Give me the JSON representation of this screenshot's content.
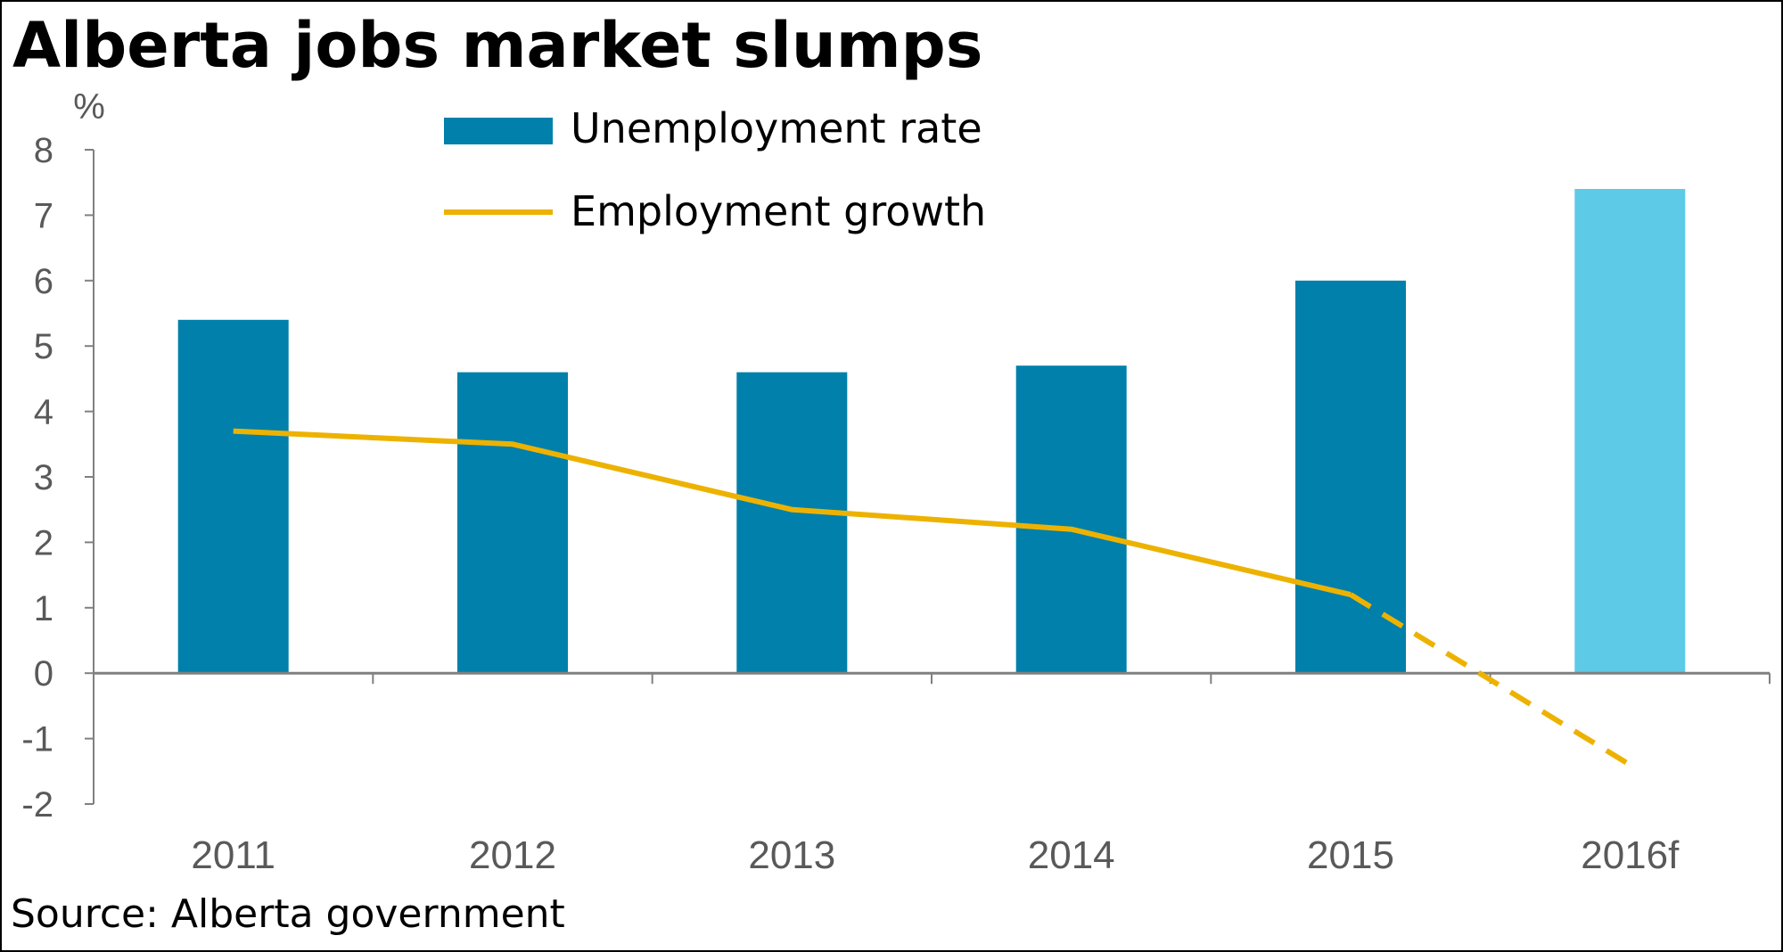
{
  "title": "Alberta jobs market slumps",
  "source": "Source: Alberta government",
  "colors": {
    "unemployment_bar": "#0080AA",
    "forecast_bar": "#5DCAE7",
    "growth_line": "#EDB200",
    "axis": "#808080",
    "tick_text": "#595959"
  },
  "chart_data": {
    "type": "bar",
    "categories": [
      "2011",
      "2012",
      "2013",
      "2014",
      "2015",
      "2016f"
    ],
    "ylabel": "%",
    "ylim": [
      -2,
      8
    ],
    "yticks": [
      8,
      7,
      6,
      5,
      4,
      3,
      2,
      1,
      0,
      -1,
      -2
    ],
    "grid": false,
    "legend_position": "top-center",
    "series": [
      {
        "name": "Unemployment rate",
        "type": "bar",
        "values": [
          5.4,
          4.6,
          4.6,
          4.7,
          6.0,
          7.4
        ],
        "forecast_from": "2016f"
      },
      {
        "name": "Employment growth",
        "type": "line",
        "values": [
          3.7,
          3.5,
          2.5,
          2.2,
          1.2,
          -1.4
        ],
        "dashed_from": "2015"
      }
    ]
  }
}
